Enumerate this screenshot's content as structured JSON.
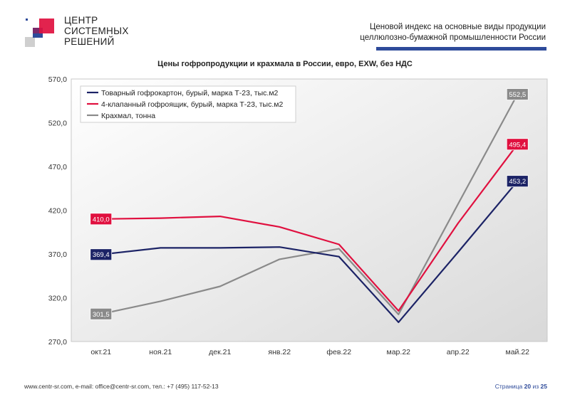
{
  "brand": {
    "line1": "ЦЕНТР",
    "line2": "СИСТЕМНЫХ",
    "line3": "РЕШЕНИЙ"
  },
  "header": {
    "line1": "Ценовой индекс на основные виды продукции",
    "line2": "целлюлозно-бумажной промышленности России"
  },
  "colors": {
    "navy": "#1c2366",
    "red": "#e0103f",
    "gray": "#8a8a8a",
    "accent": "#2e4b9a"
  },
  "chart_data": {
    "type": "line",
    "title": "Цены гофропродукции и крахмала в России, евро, EXW, без НДС",
    "categories": [
      "окт.21",
      "ноя.21",
      "дек.21",
      "янв.22",
      "фев.22",
      "мар.22",
      "апр.22",
      "май.22"
    ],
    "ylim": [
      270,
      570
    ],
    "yticks": [
      "570,0",
      "520,0",
      "470,0",
      "420,0",
      "370,0",
      "320,0",
      "270,0"
    ],
    "ytick_values": [
      570,
      520,
      470,
      420,
      370,
      320,
      270
    ],
    "grid": false,
    "legend": "top-left",
    "series": [
      {
        "name": "Товарный гофрокартон, бурый, марка Т-23, тыс.м2",
        "color": "#1c2366",
        "values": [
          369.4,
          377,
          377,
          378,
          367,
          292,
          372,
          453.2
        ],
        "start_label": "369,4",
        "end_label": "453,2"
      },
      {
        "name": "4-клапанный гофроящик, бурый, марка Т-23, тыс.м2",
        "color": "#e0103f",
        "values": [
          410.0,
          411,
          413,
          401,
          381,
          305,
          405,
          495.4
        ],
        "start_label": "410,0",
        "end_label": "495,4"
      },
      {
        "name": "Крахмал, тонна",
        "color": "#8a8a8a",
        "values": [
          301.5,
          316,
          333,
          364,
          376,
          301,
          427,
          552.5
        ],
        "start_label": "301,5",
        "end_label": "552,5"
      }
    ]
  },
  "footer": {
    "contacts": "www.centr-sr.com, e-mail: office@centr-sr.com, тел.: +7 (495) 117-52-13",
    "page_word": "Страница",
    "page_num": "20",
    "of_word": "из",
    "page_total": "25"
  }
}
